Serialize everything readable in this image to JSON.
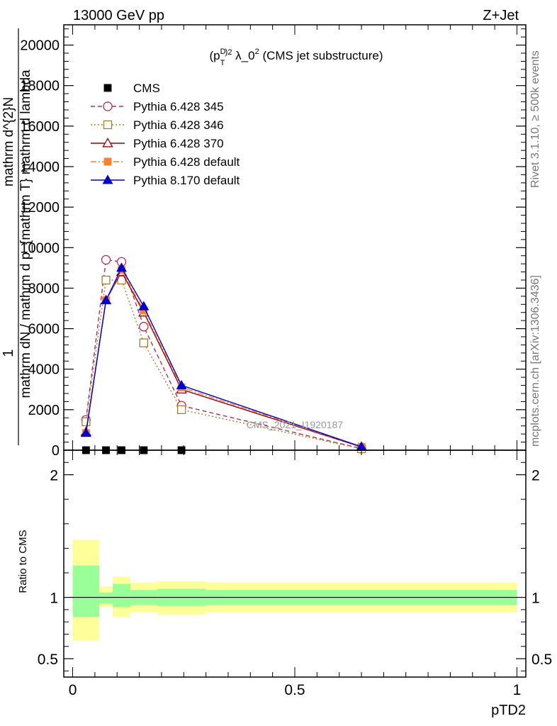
{
  "header": {
    "left": "13000 GeV pp",
    "right": "Z+Jet"
  },
  "side_labels": {
    "rivet": "Rivet 3.1.10, ≥ 500k events",
    "mcplots": "mcplots.cern.ch [arXiv:1306.3436]"
  },
  "chart_data": [
    {
      "type": "line",
      "panel": "main",
      "title_base": "(p",
      "title_sub": "T",
      "title_sup_d": "D",
      "title_sup_2": "2",
      "title_rest": " λ_0",
      "title_sup_end": "2",
      "title_tail": " (CMS jet substructure)",
      "ylabel_top": "1",
      "ylabel_line1": "mathrm d^{2}N",
      "ylabel_line2": "mathrm dN / mathrm d p_{mathrm T} mathrm d lambda",
      "ylabel_clip_a": "mathrm d^{2}N",
      "ylabel_clip_b": "mathrm d p_{T} mathrm d lambda",
      "ylim": [
        0,
        21000
      ],
      "xlim": [
        -0.02,
        1.02
      ],
      "yticks": [
        0,
        2000,
        4000,
        6000,
        8000,
        10000,
        12000,
        14000,
        16000,
        18000,
        20000
      ],
      "ytick_labels": [
        "0",
        "2000",
        "4000",
        "6000",
        "8000",
        "10000",
        "12000",
        "14000",
        "16000",
        "18000",
        "20000"
      ],
      "watermark": "CMS_2021_I1920187",
      "legend_position": "top-left",
      "series": [
        {
          "name": "CMS",
          "color": "#000000",
          "marker": "filled-square",
          "line": "none",
          "x": [
            0.03,
            0.075,
            0.11,
            0.16,
            0.245
          ],
          "y": [
            0,
            0,
            0,
            0,
            0
          ]
        },
        {
          "name": "Pythia 6.428 345",
          "color": "#b03050",
          "marker": "open-circle",
          "line": "dashed",
          "x": [
            0.03,
            0.075,
            0.11,
            0.16,
            0.245,
            0.65
          ],
          "y": [
            1500,
            9400,
            9300,
            6100,
            2200,
            80
          ]
        },
        {
          "name": "Pythia 6.428 346",
          "color": "#a08030",
          "marker": "open-square",
          "line": "dotted",
          "x": [
            0.03,
            0.075,
            0.11,
            0.16,
            0.245,
            0.65
          ],
          "y": [
            1400,
            8400,
            8400,
            5300,
            2000,
            70
          ]
        },
        {
          "name": "Pythia 6.428 370",
          "color": "#990000",
          "marker": "open-triangle",
          "line": "solid",
          "x": [
            0.03,
            0.075,
            0.11,
            0.16,
            0.245,
            0.65
          ],
          "y": [
            900,
            7400,
            8800,
            6800,
            3000,
            160
          ]
        },
        {
          "name": "Pythia 6.428 default",
          "color": "#ff7f2a",
          "marker": "filled-square",
          "line": "dashdot",
          "x": [
            0.03,
            0.075,
            0.11,
            0.16,
            0.245,
            0.65
          ],
          "y": [
            850,
            7400,
            8900,
            6900,
            3100,
            170
          ]
        },
        {
          "name": "Pythia 8.170 default",
          "color": "#0000cc",
          "marker": "filled-triangle",
          "line": "solid",
          "x": [
            0.03,
            0.075,
            0.11,
            0.16,
            0.245,
            0.65
          ],
          "y": [
            850,
            7400,
            9000,
            7100,
            3200,
            170
          ]
        }
      ]
    },
    {
      "type": "area",
      "panel": "ratio",
      "ylabel": "Ratio to CMS",
      "xlabel": "pTD2",
      "ylim": [
        0.35,
        2.2
      ],
      "xlim": [
        -0.02,
        1.02
      ],
      "yticks": [
        0.5,
        1,
        2
      ],
      "ytick_labels": [
        "0.5",
        "1",
        "2"
      ],
      "xticks": [
        0,
        0.5,
        1
      ],
      "xtick_labels": [
        "0",
        "0.5",
        "1"
      ],
      "reference_line": 1,
      "bands": [
        {
          "x0": 0.0,
          "x1": 0.06,
          "y_lo": 0.65,
          "y_hi": 1.47,
          "g_lo": 0.84,
          "g_hi": 1.26
        },
        {
          "x0": 0.06,
          "x1": 0.09,
          "y_lo": 0.92,
          "y_hi": 1.09,
          "g_lo": 0.95,
          "g_hi": 1.04
        },
        {
          "x0": 0.09,
          "x1": 0.13,
          "y_lo": 0.84,
          "y_hi": 1.17,
          "g_lo": 0.92,
          "g_hi": 1.11
        },
        {
          "x0": 0.13,
          "x1": 0.19,
          "y_lo": 0.88,
          "y_hi": 1.12,
          "g_lo": 0.94,
          "g_hi": 1.06
        },
        {
          "x0": 0.19,
          "x1": 0.3,
          "y_lo": 0.86,
          "y_hi": 1.13,
          "g_lo": 0.93,
          "g_hi": 1.07
        },
        {
          "x0": 0.3,
          "x1": 1.0,
          "y_lo": 0.88,
          "y_hi": 1.12,
          "g_lo": 0.94,
          "g_hi": 1.06
        }
      ],
      "band_colors": {
        "outer": "#ffff99",
        "inner": "#99ff99"
      }
    }
  ]
}
